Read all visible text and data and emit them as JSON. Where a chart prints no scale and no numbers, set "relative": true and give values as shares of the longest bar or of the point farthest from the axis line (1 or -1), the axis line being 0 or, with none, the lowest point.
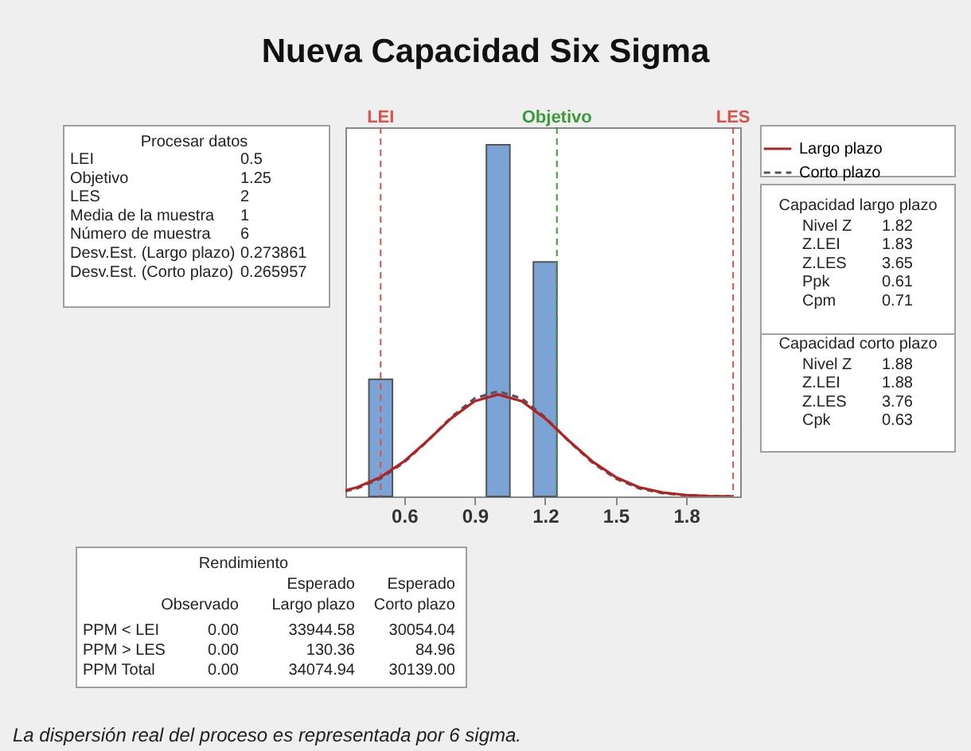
{
  "chart_data": {
    "type": "histogram",
    "title": "Nueva Capacidad Six Sigma",
    "relative": true,
    "bins": [
      0.45,
      0.55,
      0.65,
      0.75,
      0.85,
      0.95,
      1.05,
      1.15,
      1.25
    ],
    "values": [
      0.333,
      0,
      0,
      0,
      0,
      1,
      0,
      0.667
    ],
    "color": "#7ba3d6",
    "series": [
      {
        "name": "Largo plazo",
        "type": "line",
        "line_style": "solid",
        "color": "#b22222",
        "x": [
          0.35,
          0.4,
          0.5,
          0.6,
          0.7,
          0.8,
          0.9,
          1.0,
          1.1,
          1.2,
          1.3,
          1.4,
          1.5,
          1.6,
          1.7,
          1.8,
          1.9,
          2.0
        ],
        "values": [
          0.017,
          0.026,
          0.055,
          0.1,
          0.159,
          0.222,
          0.271,
          0.29,
          0.271,
          0.222,
          0.159,
          0.1,
          0.055,
          0.026,
          0.011,
          0.004,
          0.001,
          0.0
        ]
      },
      {
        "name": "Corto plazo",
        "type": "line",
        "line_style": "dashed",
        "color": "#555555",
        "x": [
          0.35,
          0.4,
          0.5,
          0.6,
          0.7,
          0.8,
          0.9,
          1.0,
          1.1,
          1.2,
          1.3,
          1.4,
          1.5,
          1.6,
          1.7,
          1.8,
          1.9,
          2.0
        ],
        "values": [
          0.015,
          0.023,
          0.051,
          0.097,
          0.158,
          0.225,
          0.279,
          0.299,
          0.279,
          0.225,
          0.158,
          0.097,
          0.051,
          0.023,
          0.009,
          0.003,
          0.001,
          0.0
        ]
      }
    ],
    "xlim": [
      0.35,
      2.03
    ],
    "xticks": [
      0.6,
      0.9,
      1.2,
      1.5,
      1.8
    ],
    "ref_lines": [
      {
        "axis": "x",
        "value": 0.5,
        "label": "LEI",
        "color": "#d9534f",
        "line_style": "dashed"
      },
      {
        "axis": "x",
        "value": 1.25,
        "label": "Objetivo",
        "color": "#3a9a3a",
        "line_style": "dashed"
      },
      {
        "axis": "x",
        "value": 2,
        "label": "LES",
        "color": "#d9534f",
        "line_style": "dashed"
      }
    ],
    "legend": "right",
    "annotations": [
      "Procesar datos",
      "LEI",
      "0.5",
      "Objetivo",
      "1.25",
      "LES",
      "2",
      "Media de la muestra",
      "1",
      "Número de muestra",
      "6",
      "Desv.Est. (Largo plazo)",
      "0.273861",
      "Desv.Est. (Corto plazo)",
      "0.265957",
      "Capacidad largo plazo",
      "Nivel Z",
      "1.82",
      "Z.LEI",
      "1.83",
      "Z.LES",
      "3.65",
      "Ppk",
      "0.61",
      "Cpm",
      "0.71",
      "Capacidad corto plazo",
      "Nivel Z",
      "1.88",
      "Z.LEI",
      "1.88",
      "Z.LES",
      "3.76",
      "Cpk",
      "0.63",
      "Rendimiento",
      "Esperado",
      "Esperado",
      "Observado",
      "Largo plazo",
      "Corto plazo",
      "PPM < LEI",
      "0.00",
      "33944.58",
      "30054.04",
      "PPM > LES",
      "0.00",
      "130.36",
      "84.96",
      "PPM Total",
      "0.00",
      "34074.94",
      "30139.00",
      "La dispersión real del proceso es representada por 6 sigma."
    ]
  }
}
